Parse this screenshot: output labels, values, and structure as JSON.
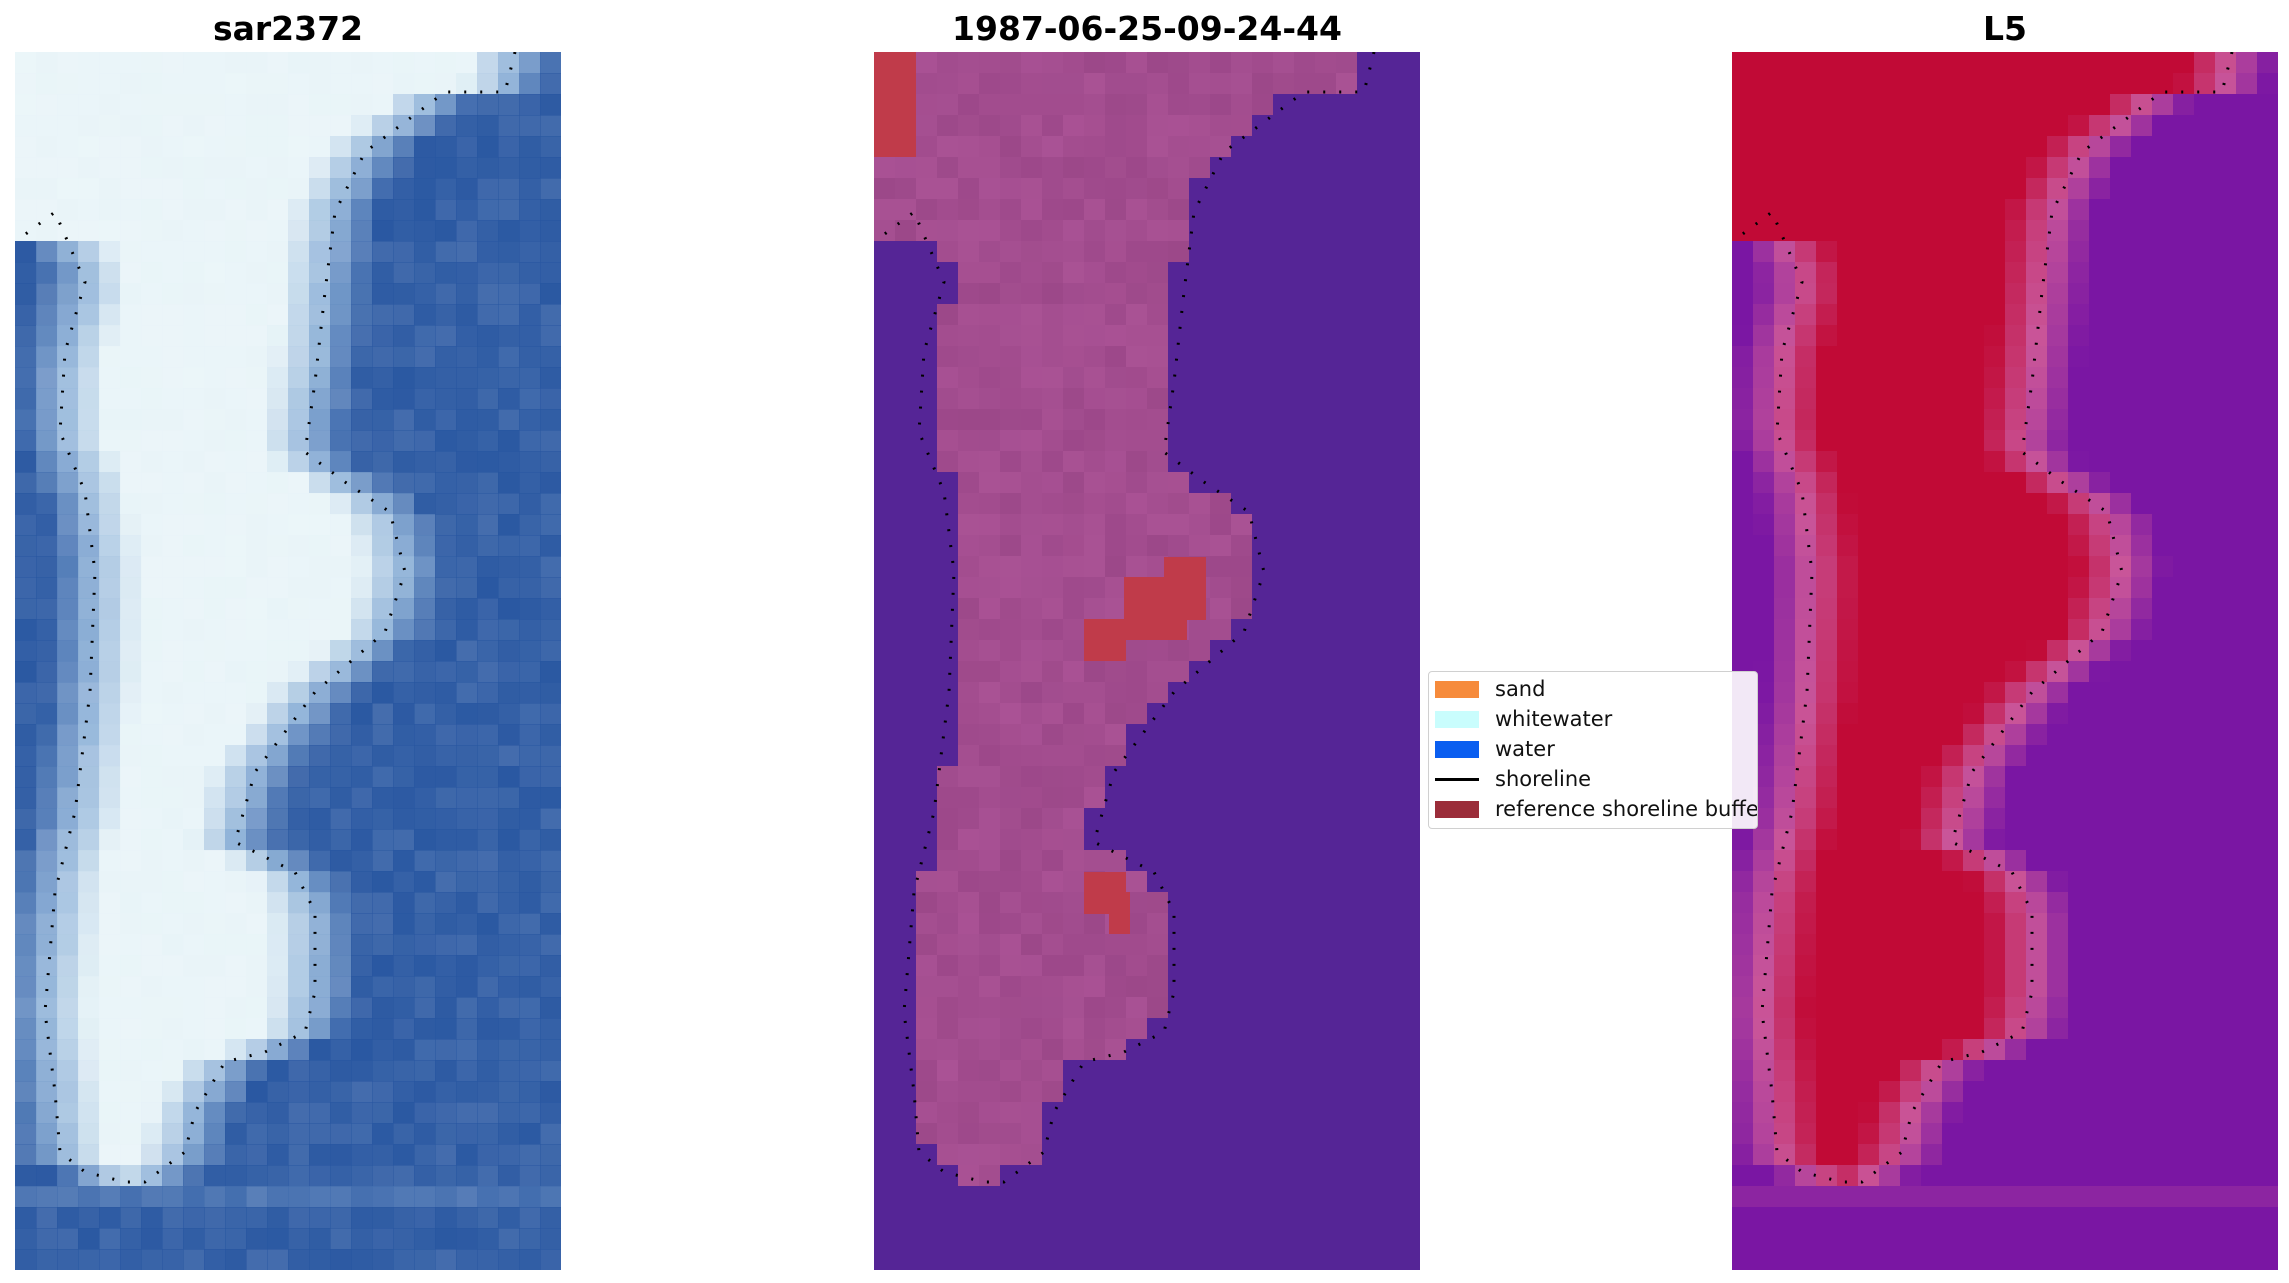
{
  "panels": [
    {
      "title": "sar2372",
      "kind": "rgb"
    },
    {
      "title": "1987-06-25-09-24-44",
      "kind": "classified"
    },
    {
      "title": "L5",
      "kind": "index"
    }
  ],
  "legend": {
    "items": [
      {
        "label": "sand",
        "color": "#f68b3c",
        "type": "patch"
      },
      {
        "label": "whitewater",
        "color": "#c9fdfd",
        "type": "patch"
      },
      {
        "label": "water",
        "color": "#0a5ef0",
        "type": "patch"
      },
      {
        "label": "shoreline",
        "color": "#000000",
        "type": "line"
      },
      {
        "label": "reference shoreline buffer",
        "color": "#9b2d3a",
        "type": "patch"
      }
    ]
  },
  "colors": {
    "water_rgb": "#2a57a0",
    "water_class": "#552596",
    "land_class": "#b0579a",
    "index_land": "#c10a36",
    "index_water": "#7a16a3"
  }
}
